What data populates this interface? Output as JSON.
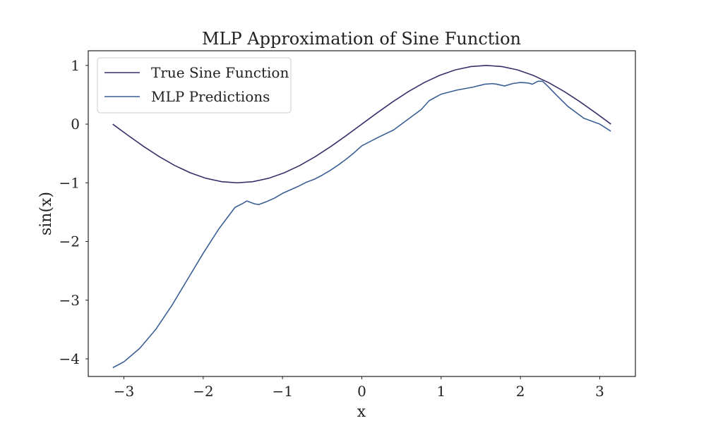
{
  "chart_data": {
    "type": "line",
    "title": "MLP Approximation of Sine Function",
    "xlabel": "x",
    "ylabel": "sin(x)",
    "xlim": [
      -3.45,
      3.45
    ],
    "ylim": [
      -4.3,
      1.25
    ],
    "grid": false,
    "legend_position": "top-left",
    "xticks": [
      {
        "value": -3,
        "label": "−3"
      },
      {
        "value": -2,
        "label": "−2"
      },
      {
        "value": -1,
        "label": "−1"
      },
      {
        "value": 0,
        "label": "0"
      },
      {
        "value": 1,
        "label": "1"
      },
      {
        "value": 2,
        "label": "2"
      },
      {
        "value": 3,
        "label": "3"
      }
    ],
    "yticks": [
      {
        "value": 1,
        "label": "1"
      },
      {
        "value": 0,
        "label": "0"
      },
      {
        "value": -1,
        "label": "−1"
      },
      {
        "value": -2,
        "label": "−2"
      },
      {
        "value": -3,
        "label": "−3"
      },
      {
        "value": -4,
        "label": "−4"
      }
    ],
    "series": [
      {
        "name": "True Sine Function",
        "color": "#3b2f6b",
        "x": [
          -3.1416,
          -2.9452,
          -2.7489,
          -2.5525,
          -2.3562,
          -2.1598,
          -1.9635,
          -1.7671,
          -1.5708,
          -1.3744,
          -1.1781,
          -0.9817,
          -0.7854,
          -0.589,
          -0.3927,
          -0.1963,
          0,
          0.1963,
          0.3927,
          0.589,
          0.7854,
          0.9817,
          1.1781,
          1.3744,
          1.5708,
          1.7671,
          1.9635,
          2.1598,
          2.3562,
          2.5525,
          2.7489,
          2.9452,
          3.1416
        ],
        "y": [
          0,
          -0.1951,
          -0.3827,
          -0.5556,
          -0.7071,
          -0.8315,
          -0.9239,
          -0.9808,
          -1,
          -0.9808,
          -0.9239,
          -0.8315,
          -0.7071,
          -0.5556,
          -0.3827,
          -0.1951,
          0,
          0.1951,
          0.3827,
          0.5556,
          0.7071,
          0.8315,
          0.9239,
          0.9808,
          1,
          0.9808,
          0.9239,
          0.8315,
          0.7071,
          0.5556,
          0.3827,
          0.1951,
          0
        ]
      },
      {
        "name": "MLP Predictions",
        "color": "#3a5f94",
        "x": [
          -3.14,
          -3.0,
          -2.8,
          -2.6,
          -2.4,
          -2.2,
          -2.0,
          -1.8,
          -1.6,
          -1.5,
          -1.45,
          -1.35,
          -1.3,
          -1.2,
          -1.1,
          -1.0,
          -0.9,
          -0.8,
          -0.7,
          -0.6,
          -0.5,
          -0.4,
          -0.3,
          -0.2,
          -0.1,
          0.0,
          0.2,
          0.4,
          0.6,
          0.75,
          0.85,
          1.0,
          1.2,
          1.4,
          1.55,
          1.65,
          1.7,
          1.8,
          1.9,
          2.0,
          2.1,
          2.15,
          2.22,
          2.28,
          2.35,
          2.45,
          2.6,
          2.8,
          3.0,
          3.14
        ],
        "y": [
          -4.15,
          -4.05,
          -3.82,
          -3.5,
          -3.1,
          -2.65,
          -2.2,
          -1.78,
          -1.42,
          -1.35,
          -1.31,
          -1.36,
          -1.37,
          -1.32,
          -1.26,
          -1.18,
          -1.12,
          -1.06,
          -0.99,
          -0.94,
          -0.87,
          -0.79,
          -0.7,
          -0.6,
          -0.49,
          -0.37,
          -0.23,
          -0.1,
          0.1,
          0.25,
          0.4,
          0.51,
          0.58,
          0.63,
          0.68,
          0.69,
          0.68,
          0.65,
          0.69,
          0.71,
          0.7,
          0.68,
          0.73,
          0.73,
          0.64,
          0.5,
          0.3,
          0.1,
          0,
          -0.12
        ]
      }
    ]
  }
}
